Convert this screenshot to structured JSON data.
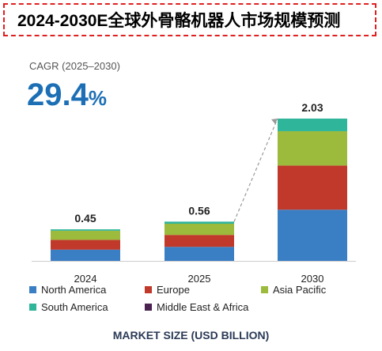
{
  "header": {
    "title": "2024-2030E全球外骨骼机器人市场规模预测"
  },
  "cagr": {
    "label": "CAGR (2025–2030)",
    "value": "29.4",
    "unit": "%"
  },
  "colors": {
    "north_america": "#3a7fc4",
    "europe": "#c0392b",
    "asia_pacific": "#9cbb3c",
    "south_america": "#2fb59a",
    "middle_east_africa": "#4a2350",
    "dashed_line": "#999999",
    "baseline": "#cccccc"
  },
  "chart_data": {
    "type": "bar",
    "stacked": true,
    "categories": [
      "2024",
      "2025",
      "2030"
    ],
    "totals": [
      0.45,
      0.56,
      2.03
    ],
    "total_labels": [
      "0.45",
      "0.56",
      "2.03"
    ],
    "series": [
      {
        "name": "North America",
        "key": "north_america",
        "values": [
          0.16,
          0.2,
          0.73
        ]
      },
      {
        "name": "Europe",
        "key": "europe",
        "values": [
          0.14,
          0.17,
          0.63
        ]
      },
      {
        "name": "Asia Pacific",
        "key": "asia_pacific",
        "values": [
          0.13,
          0.16,
          0.49
        ]
      },
      {
        "name": "South America",
        "key": "south_america",
        "values": [
          0.02,
          0.03,
          0.18
        ]
      },
      {
        "name": "Middle East & Africa",
        "key": "middle_east_africa",
        "values": [
          0.0,
          0.0,
          0.0
        ]
      }
    ],
    "ylim": [
      0,
      2.03
    ],
    "xlabel": "MARKET SIZE (USD BILLION)",
    "legend": "bottom",
    "grid": false
  }
}
